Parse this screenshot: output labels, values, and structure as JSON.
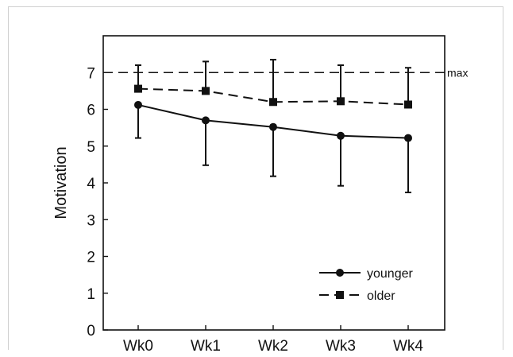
{
  "chart_data": {
    "type": "line",
    "ylabel": "Motivation",
    "xlabel": "",
    "categories": [
      "Wk0",
      "Wk1",
      "Wk2",
      "Wk3",
      "Wk4"
    ],
    "ylim": [
      0,
      8
    ],
    "yticks": [
      0,
      1,
      2,
      3,
      4,
      5,
      6,
      7
    ],
    "grid": false,
    "legend_position": "bottom-right",
    "series": [
      {
        "name": "younger",
        "marker": "circle",
        "line_style": "solid",
        "values": [
          6.12,
          5.7,
          5.52,
          5.28,
          5.22
        ],
        "error": [
          0.9,
          1.22,
          1.34,
          1.36,
          1.48
        ],
        "error_direction": "down"
      },
      {
        "name": "older",
        "marker": "square",
        "line_style": "dashed",
        "values": [
          6.56,
          6.5,
          6.2,
          6.22,
          6.13
        ],
        "error": [
          0.64,
          0.8,
          1.15,
          0.98,
          1.0
        ],
        "error_direction": "up"
      }
    ],
    "reference_line": {
      "value": 7,
      "label": "max",
      "line_style": "dashed"
    }
  }
}
